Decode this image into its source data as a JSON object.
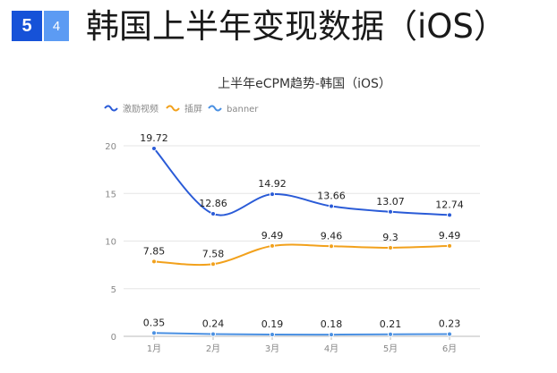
{
  "header": {
    "section_number": "5",
    "subsection_number": "4",
    "title": "韩国上半年变现数据（iOS）"
  },
  "chart_data": {
    "type": "line",
    "title": "上半年eCPM趋势-韩国（iOS）",
    "categories": [
      "1月",
      "2月",
      "3月",
      "4月",
      "5月",
      "6月"
    ],
    "ylim": [
      0,
      20
    ],
    "yticks": [
      0,
      5,
      10,
      15,
      20
    ],
    "grid": true,
    "legend_position": "top-left",
    "smooth": true,
    "series": [
      {
        "name": "激励视频",
        "color": "#2a5bd7",
        "values": [
          19.72,
          12.86,
          14.92,
          13.66,
          13.07,
          12.74
        ],
        "labels": [
          "19.72",
          "12.86",
          "14.92",
          "13.66",
          "13.07",
          "12.74"
        ]
      },
      {
        "name": "插屏",
        "color": "#f2a11c",
        "values": [
          7.85,
          7.58,
          9.49,
          9.46,
          9.3,
          9.49
        ],
        "labels": [
          "7.85",
          "7.58",
          "9.49",
          "9.46",
          "9.3",
          "9.49"
        ]
      },
      {
        "name": "banner",
        "color": "#4a90e2",
        "values": [
          0.35,
          0.24,
          0.19,
          0.18,
          0.21,
          0.23
        ],
        "labels": [
          "0.35",
          "0.24",
          "0.19",
          "0.18",
          "0.21",
          "0.23"
        ]
      }
    ]
  }
}
